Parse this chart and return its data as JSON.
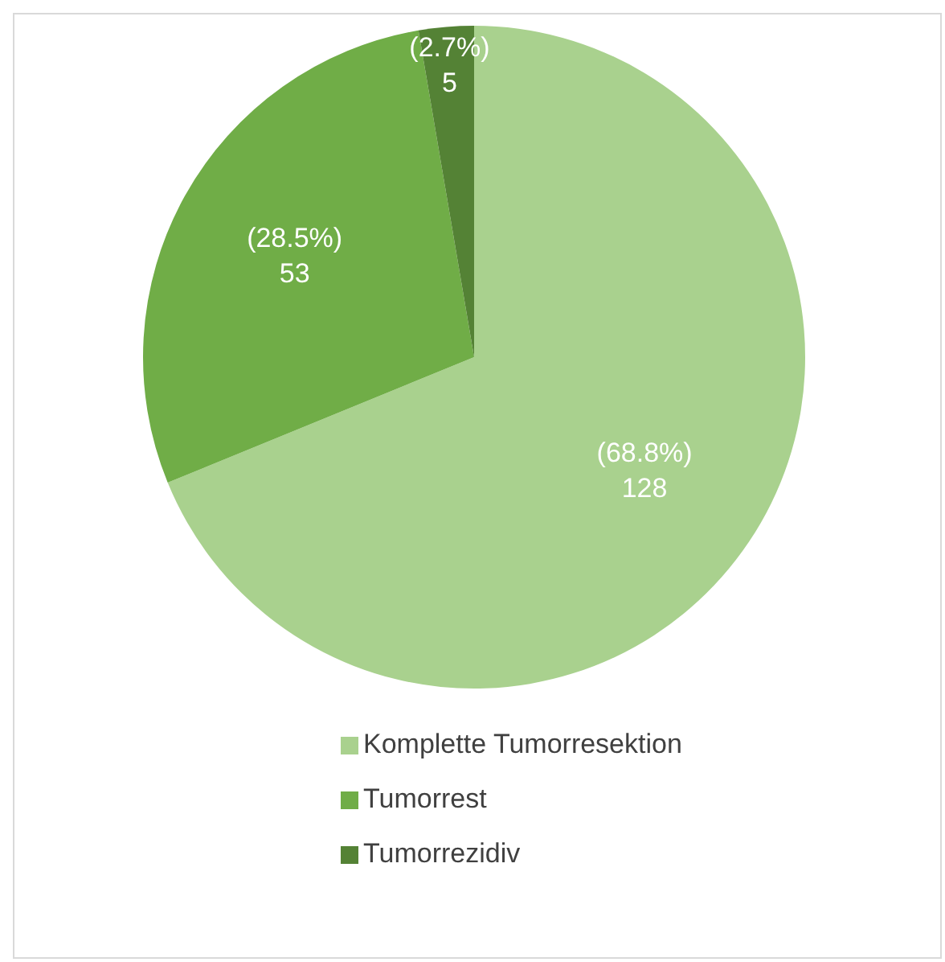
{
  "chart_data": {
    "type": "pie",
    "categories": [
      "Komplette Tumorresektion",
      "Tumorrest",
      "Tumorrezidiv"
    ],
    "values": [
      128,
      53,
      5
    ],
    "colors": [
      "#a9d18e",
      "#70ad47",
      "#548235"
    ],
    "value_labels": [
      "(68.8%)\n128",
      "(28.5%)\n53",
      "(2.7%)\n5"
    ],
    "legend": "bottom"
  }
}
